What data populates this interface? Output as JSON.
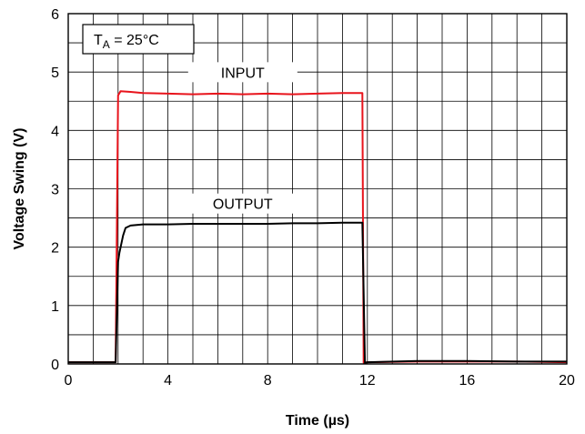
{
  "chart_data": {
    "type": "line",
    "xlabel": "Time (µs)",
    "ylabel": "Voltage Swing (V)",
    "xlim": [
      0,
      20
    ],
    "ylim": [
      0,
      6
    ],
    "x_ticks": [
      0,
      4,
      8,
      12,
      16,
      20
    ],
    "y_ticks": [
      0,
      1,
      2,
      3,
      4,
      5,
      6
    ],
    "x_minor_step": 1,
    "y_minor_step": 0.5,
    "grid": true,
    "annotation": {
      "main": "T",
      "sub": "A",
      "rest": " = 25°C"
    },
    "series": [
      {
        "name": "INPUT",
        "color": "#e8141c",
        "x": [
          0,
          1.9,
          2.0,
          2.1,
          2.5,
          3,
          4,
          5,
          6,
          7,
          8,
          9,
          10,
          11,
          11.8,
          11.85,
          12.0,
          14,
          16,
          18,
          20
        ],
        "y": [
          0.03,
          0.03,
          4.6,
          4.67,
          4.66,
          4.64,
          4.63,
          4.62,
          4.63,
          4.62,
          4.63,
          4.62,
          4.63,
          4.64,
          4.64,
          0.02,
          0.03,
          0.04,
          0.04,
          0.04,
          0.03
        ]
      },
      {
        "name": "OUTPUT",
        "color": "#000000",
        "x": [
          0,
          1.9,
          2.0,
          2.05,
          2.2,
          2.3,
          2.5,
          3,
          4,
          5,
          6,
          7,
          8,
          9,
          10,
          11,
          11.8,
          11.9,
          12.0,
          14,
          16,
          18,
          20
        ],
        "y": [
          0.03,
          0.03,
          1.75,
          1.9,
          2.2,
          2.33,
          2.37,
          2.39,
          2.39,
          2.4,
          2.4,
          2.4,
          2.4,
          2.41,
          2.41,
          2.42,
          2.42,
          0.02,
          0.03,
          0.05,
          0.05,
          0.04,
          0.04
        ]
      }
    ]
  }
}
